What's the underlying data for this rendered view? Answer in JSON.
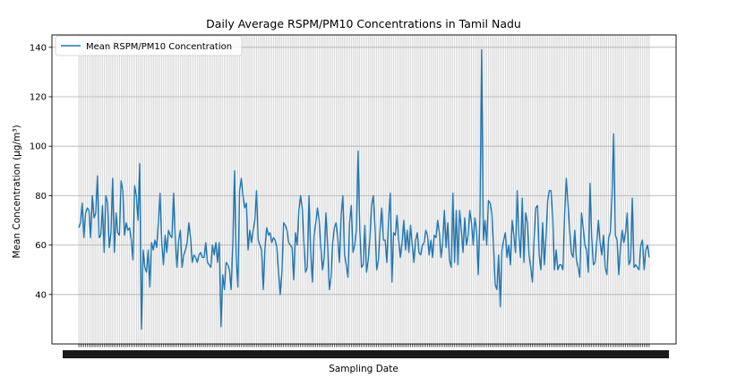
{
  "chart_data": {
    "type": "line",
    "title": "Daily Average RSPM/PM10 Concentrations in Tamil Nadu",
    "xlabel": "Sampling Date",
    "ylabel": "Mean Concentration (µg/m³)",
    "ylim": [
      20,
      145
    ],
    "yticks": [
      40,
      60,
      80,
      100,
      120,
      140
    ],
    "grid": true,
    "legend_position": "top-left",
    "x_tick_labels_note": "x tick labels are overlapping date strings and unreadable",
    "series": [
      {
        "name": "Mean RSPM/PM10 Concentration",
        "color": "#1f77b4",
        "values": [
          67,
          69,
          77,
          63,
          73,
          75,
          74,
          63,
          80,
          71,
          73,
          88,
          63,
          64,
          76,
          57,
          80,
          77,
          59,
          65,
          87,
          57,
          73,
          65,
          64,
          86,
          82,
          64,
          69,
          66,
          67,
          62,
          54,
          84,
          80,
          70,
          93,
          26,
          58,
          51,
          49,
          58,
          43,
          61,
          58,
          62,
          59,
          69,
          81,
          61,
          52,
          64,
          57,
          66,
          64,
          63,
          81,
          62,
          51,
          62,
          66,
          51,
          56,
          58,
          61,
          69,
          63,
          53,
          56,
          55,
          53,
          56,
          57,
          55,
          55,
          61,
          53,
          52,
          51,
          60,
          56,
          61,
          53,
          61,
          27,
          48,
          42,
          53,
          52,
          50,
          42,
          61,
          90,
          55,
          43,
          82,
          87,
          80,
          75,
          77,
          58,
          66,
          61,
          66,
          70,
          82,
          62,
          60,
          58,
          42,
          59,
          67,
          64,
          65,
          61,
          63,
          62,
          59,
          49,
          40,
          49,
          69,
          68,
          66,
          61,
          60,
          59,
          46,
          65,
          60,
          74,
          80,
          75,
          61,
          49,
          51,
          80,
          57,
          45,
          64,
          69,
          75,
          70,
          59,
          50,
          55,
          73,
          60,
          42,
          47,
          61,
          67,
          69,
          63,
          53,
          72,
          80,
          56,
          52,
          47,
          69,
          76,
          57,
          60,
          66,
          98,
          66,
          51,
          52,
          68,
          49,
          54,
          63,
          76,
          80,
          67,
          50,
          54,
          66,
          75,
          62,
          62,
          53,
          70,
          81,
          45,
          65,
          64,
          72,
          62,
          55,
          61,
          70,
          58,
          66,
          57,
          68,
          60,
          53,
          62,
          65,
          57,
          56,
          60,
          61,
          66,
          64,
          56,
          62,
          55,
          64,
          63,
          70,
          65,
          55,
          61,
          74,
          59,
          69,
          54,
          51,
          81,
          53,
          74,
          52,
          74,
          66,
          57,
          71,
          60,
          64,
          74,
          69,
          60,
          71,
          66,
          48,
          72,
          139,
          62,
          70,
          60,
          78,
          77,
          73,
          60,
          44,
          42,
          56,
          35,
          58,
          62,
          65,
          55,
          60,
          52,
          70,
          64,
          57,
          82,
          64,
          55,
          79,
          53,
          73,
          69,
          56,
          51,
          45,
          63,
          75,
          76,
          56,
          50,
          69,
          52,
          63,
          78,
          82,
          82,
          71,
          50,
          58,
          50,
          52,
          52,
          50,
          72,
          87,
          77,
          66,
          57,
          55,
          66,
          54,
          51,
          47,
          73,
          67,
          60,
          58,
          49,
          85,
          63,
          52,
          53,
          61,
          70,
          61,
          56,
          64,
          51,
          48,
          63,
          65,
          80,
          105,
          64,
          62,
          48,
          59,
          66,
          61,
          65,
          73,
          52,
          54,
          79,
          51,
          52,
          51,
          50,
          60,
          62,
          50,
          58,
          60,
          55
        ]
      }
    ]
  }
}
